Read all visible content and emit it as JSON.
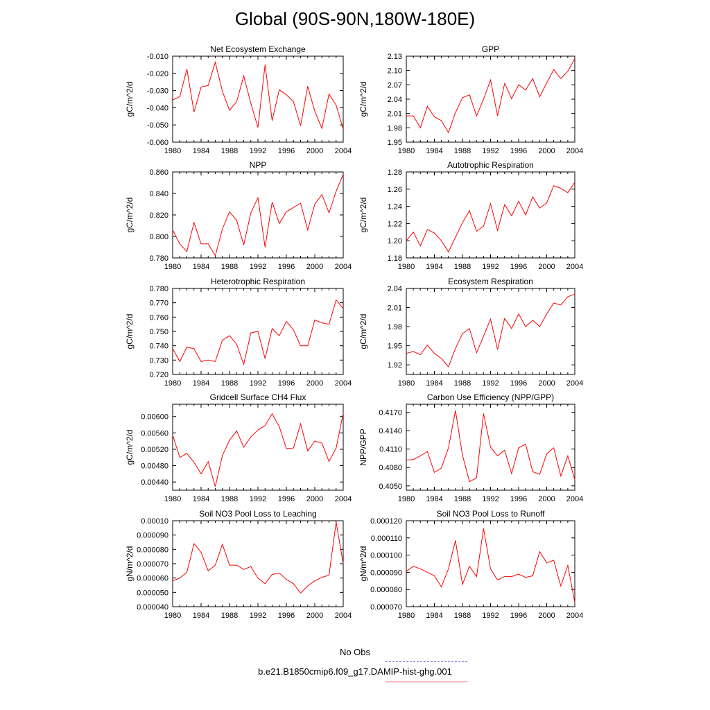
{
  "title": "Global (90S-90N,180W-180E)",
  "legend": {
    "obs_label": "No Obs",
    "obs_color": "#4a4ad8",
    "model_label": "b.e21.B1850cmip6.f09_g17.DAMIP-hist-ghg.001",
    "model_color": "#ff0000"
  },
  "chart_data": [
    {
      "type": "line",
      "title": "Net Ecosystem Exchange",
      "ylabel": "gC/m^2/d",
      "xlim": [
        1980,
        2004
      ],
      "ylim": [
        -0.06,
        -0.01
      ],
      "xticks": [
        "1980",
        "1984",
        "1988",
        "1992",
        "1996",
        "2000",
        "2004"
      ],
      "yticks": [
        "-0.060",
        "-0.050",
        "-0.040",
        "-0.030",
        "-0.020",
        "-0.010"
      ],
      "x": [
        1980,
        1981,
        1982,
        1983,
        1984,
        1985,
        1986,
        1987,
        1988,
        1989,
        1990,
        1991,
        1992,
        1993,
        1994,
        1995,
        1996,
        1997,
        1998,
        1999,
        2000,
        2001,
        2002,
        2003,
        2004
      ],
      "series": [
        {
          "values": [
            -0.0355,
            -0.0335,
            -0.0175,
            -0.0425,
            -0.028,
            -0.027,
            -0.0135,
            -0.0305,
            -0.0415,
            -0.0365,
            -0.0215,
            -0.0375,
            -0.0515,
            -0.015,
            -0.0475,
            -0.0295,
            -0.0325,
            -0.0365,
            -0.0505,
            -0.0275,
            -0.042,
            -0.052,
            -0.032,
            -0.0385,
            -0.0525
          ]
        }
      ]
    },
    {
      "type": "line",
      "title": "GPP",
      "ylabel": "gC/m^2/d",
      "xlim": [
        1980,
        2004
      ],
      "ylim": [
        1.95,
        2.13
      ],
      "xticks": [
        "1980",
        "1984",
        "1988",
        "1992",
        "1996",
        "2000",
        "2004"
      ],
      "yticks": [
        "1.95",
        "1.98",
        "2.01",
        "2.04",
        "2.07",
        "2.10",
        "2.13"
      ],
      "x": [
        1980,
        1981,
        1982,
        1983,
        1984,
        1985,
        1986,
        1987,
        1988,
        1989,
        1990,
        1991,
        1992,
        1993,
        1994,
        1995,
        1996,
        1997,
        1998,
        1999,
        2000,
        2001,
        2002,
        2003,
        2004
      ],
      "series": [
        {
          "values": [
            2.005,
            2.005,
            1.98,
            2.025,
            2.003,
            1.995,
            1.97,
            2.012,
            2.043,
            2.049,
            2.005,
            2.04,
            2.08,
            2.005,
            2.073,
            2.041,
            2.07,
            2.059,
            2.083,
            2.045,
            2.074,
            2.102,
            2.083,
            2.098,
            2.125
          ]
        }
      ]
    },
    {
      "type": "line",
      "title": "NPP",
      "ylabel": "gC/m^2/d",
      "xlim": [
        1980,
        2004
      ],
      "ylim": [
        0.78,
        0.86
      ],
      "xticks": [
        "1980",
        "1984",
        "1988",
        "1992",
        "1996",
        "2000",
        "2004"
      ],
      "yticks": [
        "0.780",
        "0.800",
        "0.820",
        "0.840",
        "0.860"
      ],
      "x": [
        1980,
        1981,
        1982,
        1983,
        1984,
        1985,
        1986,
        1987,
        1988,
        1989,
        1990,
        1991,
        1992,
        1993,
        1994,
        1995,
        1996,
        1997,
        1998,
        1999,
        2000,
        2001,
        2002,
        2003,
        2004
      ],
      "series": [
        {
          "values": [
            0.806,
            0.793,
            0.786,
            0.813,
            0.793,
            0.793,
            0.782,
            0.807,
            0.823,
            0.815,
            0.792,
            0.822,
            0.836,
            0.79,
            0.832,
            0.812,
            0.823,
            0.827,
            0.831,
            0.806,
            0.83,
            0.839,
            0.822,
            0.842,
            0.858
          ]
        }
      ]
    },
    {
      "type": "line",
      "title": "Autotrophic Respiration",
      "ylabel": "gC/m^2/d",
      "xlim": [
        1980,
        2004
      ],
      "ylim": [
        1.18,
        1.28
      ],
      "xticks": [
        "1980",
        "1984",
        "1988",
        "1992",
        "1996",
        "2000",
        "2004"
      ],
      "yticks": [
        "1.18",
        "1.20",
        "1.22",
        "1.24",
        "1.26",
        "1.28"
      ],
      "x": [
        1980,
        1981,
        1982,
        1983,
        1984,
        1985,
        1986,
        1987,
        1988,
        1989,
        1990,
        1991,
        1992,
        1993,
        1994,
        1995,
        1996,
        1997,
        1998,
        1999,
        2000,
        2001,
        2002,
        2003,
        2004
      ],
      "series": [
        {
          "values": [
            1.2,
            1.21,
            1.194,
            1.213,
            1.209,
            1.2,
            1.187,
            1.204,
            1.221,
            1.235,
            1.211,
            1.217,
            1.243,
            1.212,
            1.242,
            1.229,
            1.246,
            1.23,
            1.251,
            1.238,
            1.244,
            1.264,
            1.261,
            1.256,
            1.268
          ]
        }
      ]
    },
    {
      "type": "line",
      "title": "Heterotrophic Respiration",
      "ylabel": "gC/m^2/d",
      "xlim": [
        1980,
        2004
      ],
      "ylim": [
        0.72,
        0.78
      ],
      "xticks": [
        "1980",
        "1984",
        "1988",
        "1992",
        "1996",
        "2000",
        "2004"
      ],
      "yticks": [
        "0.720",
        "0.730",
        "0.740",
        "0.750",
        "0.760",
        "0.770",
        "0.780"
      ],
      "x": [
        1980,
        1981,
        1982,
        1983,
        1984,
        1985,
        1986,
        1987,
        1988,
        1989,
        1990,
        1991,
        1992,
        1993,
        1994,
        1995,
        1996,
        1997,
        1998,
        1999,
        2000,
        2001,
        2002,
        2003,
        2004
      ],
      "series": [
        {
          "values": [
            0.738,
            0.729,
            0.739,
            0.738,
            0.729,
            0.73,
            0.729,
            0.744,
            0.747,
            0.741,
            0.727,
            0.749,
            0.75,
            0.731,
            0.752,
            0.747,
            0.757,
            0.751,
            0.74,
            0.74,
            0.758,
            0.756,
            0.755,
            0.772,
            0.766
          ]
        }
      ]
    },
    {
      "type": "line",
      "title": "Ecosystem Respiration",
      "ylabel": "gC/m^2/d",
      "xlim": [
        1980,
        2004
      ],
      "ylim": [
        1.905,
        2.04
      ],
      "xticks": [
        "1980",
        "1984",
        "1988",
        "1992",
        "1996",
        "2000",
        "2004"
      ],
      "yticks": [
        "1.92",
        "1.95",
        "1.98",
        "2.01",
        "2.04"
      ],
      "x": [
        1980,
        1981,
        1982,
        1983,
        1984,
        1985,
        1986,
        1987,
        1988,
        1989,
        1990,
        1991,
        1992,
        1993,
        1994,
        1995,
        1996,
        1997,
        1998,
        1999,
        2000,
        2001,
        2002,
        2003,
        2004
      ],
      "series": [
        {
          "values": [
            1.938,
            1.941,
            1.936,
            1.951,
            1.938,
            1.93,
            1.917,
            1.946,
            1.969,
            1.977,
            1.939,
            1.965,
            1.992,
            1.944,
            1.993,
            1.977,
            2.0,
            1.98,
            1.99,
            1.98,
            2.0,
            2.017,
            2.014,
            2.027,
            2.031
          ]
        }
      ]
    },
    {
      "type": "line",
      "title": "Gridcell Surface CH4 Flux",
      "ylabel": "gC/m^2/d",
      "xlim": [
        1980,
        2004
      ],
      "ylim": [
        0.0042,
        0.0063
      ],
      "xticks": [
        "1980",
        "1984",
        "1988",
        "1992",
        "1996",
        "2000",
        "2004"
      ],
      "yticks": [
        "0.00440",
        "0.00480",
        "0.00520",
        "0.00560",
        "0.00600"
      ],
      "x": [
        1980,
        1981,
        1982,
        1983,
        1984,
        1985,
        1986,
        1987,
        1988,
        1989,
        1990,
        1991,
        1992,
        1993,
        1994,
        1995,
        1996,
        1997,
        1998,
        1999,
        2000,
        2001,
        2002,
        2003,
        2004
      ],
      "series": [
        {
          "values": [
            0.00555,
            0.005,
            0.0051,
            0.00488,
            0.0046,
            0.0049,
            0.00429,
            0.00505,
            0.00542,
            0.00565,
            0.00525,
            0.0055,
            0.00567,
            0.00578,
            0.00607,
            0.00575,
            0.00522,
            0.00523,
            0.00582,
            0.00516,
            0.0054,
            0.00535,
            0.0049,
            0.00523,
            0.00608
          ]
        }
      ]
    },
    {
      "type": "line",
      "title": "Carbon Use Efficiency (NPP/GPP)",
      "ylabel": "NPP/GPP",
      "xlim": [
        1980,
        2004
      ],
      "ylim": [
        0.4043,
        0.4183
      ],
      "xticks": [
        "1980",
        "1984",
        "1988",
        "1992",
        "1996",
        "2000",
        "2004"
      ],
      "yticks": [
        "0.4050",
        "0.4080",
        "0.4110",
        "0.4140",
        "0.4170"
      ],
      "x": [
        1980,
        1981,
        1982,
        1983,
        1984,
        1985,
        1986,
        1987,
        1988,
        1989,
        1990,
        1991,
        1992,
        1993,
        1994,
        1995,
        1996,
        1997,
        1998,
        1999,
        2000,
        2001,
        2002,
        2003,
        2004
      ],
      "series": [
        {
          "values": [
            0.4092,
            0.4093,
            0.4099,
            0.4106,
            0.4072,
            0.4079,
            0.4112,
            0.4173,
            0.41,
            0.4057,
            0.4063,
            0.4168,
            0.4113,
            0.4099,
            0.4108,
            0.407,
            0.4112,
            0.4118,
            0.4073,
            0.4069,
            0.4102,
            0.4112,
            0.4066,
            0.4099,
            0.406
          ]
        }
      ]
    },
    {
      "type": "line",
      "title": "Soil NO3 Pool Loss to Leaching",
      "ylabel": "gN/m^2/d",
      "xlim": [
        1980,
        2004
      ],
      "ylim": [
        4e-05,
        0.0001
      ],
      "xticks": [
        "1980",
        "1984",
        "1988",
        "1992",
        "1996",
        "2000",
        "2004"
      ],
      "yticks": [
        "0.000040",
        "0.000050",
        "0.000060",
        "0.000070",
        "0.000080",
        "0.000090",
        "0.00010"
      ],
      "x": [
        1980,
        1981,
        1982,
        1983,
        1984,
        1985,
        1986,
        1987,
        1988,
        1989,
        1990,
        1991,
        1992,
        1993,
        1994,
        1995,
        1996,
        1997,
        1998,
        1999,
        2000,
        2001,
        2002,
        2003,
        2004
      ],
      "series": [
        {
          "values": [
            5.8e-05,
            6e-05,
            6.4e-05,
            8.4e-05,
            7.8e-05,
            6.5e-05,
            6.9e-05,
            8.35e-05,
            6.9e-05,
            6.9e-05,
            6.6e-05,
            6.8e-05,
            6e-05,
            5.6e-05,
            6.25e-05,
            6.35e-05,
            5.9e-05,
            5.6e-05,
            4.95e-05,
            5.45e-05,
            5.8e-05,
            6.05e-05,
            6.2e-05,
            9.9e-05,
            7e-05
          ]
        }
      ]
    },
    {
      "type": "line",
      "title": "Soil NO3 Pool Loss to Runoff",
      "ylabel": "gN/m^2/d",
      "xlim": [
        1980,
        2004
      ],
      "ylim": [
        7e-05,
        0.00012
      ],
      "xticks": [
        "1980",
        "1984",
        "1988",
        "1992",
        "1996",
        "2000",
        "2004"
      ],
      "yticks": [
        "0.000070",
        "0.000080",
        "0.000090",
        "0.000100",
        "0.000110",
        "0.000120"
      ],
      "x": [
        1980,
        1981,
        1982,
        1983,
        1984,
        1985,
        1986,
        1987,
        1988,
        1989,
        1990,
        1991,
        1992,
        1993,
        1994,
        1995,
        1996,
        1997,
        1998,
        1999,
        2000,
        2001,
        2002,
        2003,
        2004
      ],
      "series": [
        {
          "values": [
            9.05e-05,
            9.35e-05,
            9.2e-05,
            9e-05,
            8.8e-05,
            8.15e-05,
            9.2e-05,
            0.0001085,
            8.3e-05,
            9.35e-05,
            8.75e-05,
            0.0001155,
            9.2e-05,
            8.55e-05,
            8.75e-05,
            8.75e-05,
            8.9e-05,
            8.7e-05,
            8.8e-05,
            0.000102,
            9.55e-05,
            9.7e-05,
            8.2e-05,
            9.4e-05,
            7.25e-05
          ]
        }
      ]
    }
  ]
}
